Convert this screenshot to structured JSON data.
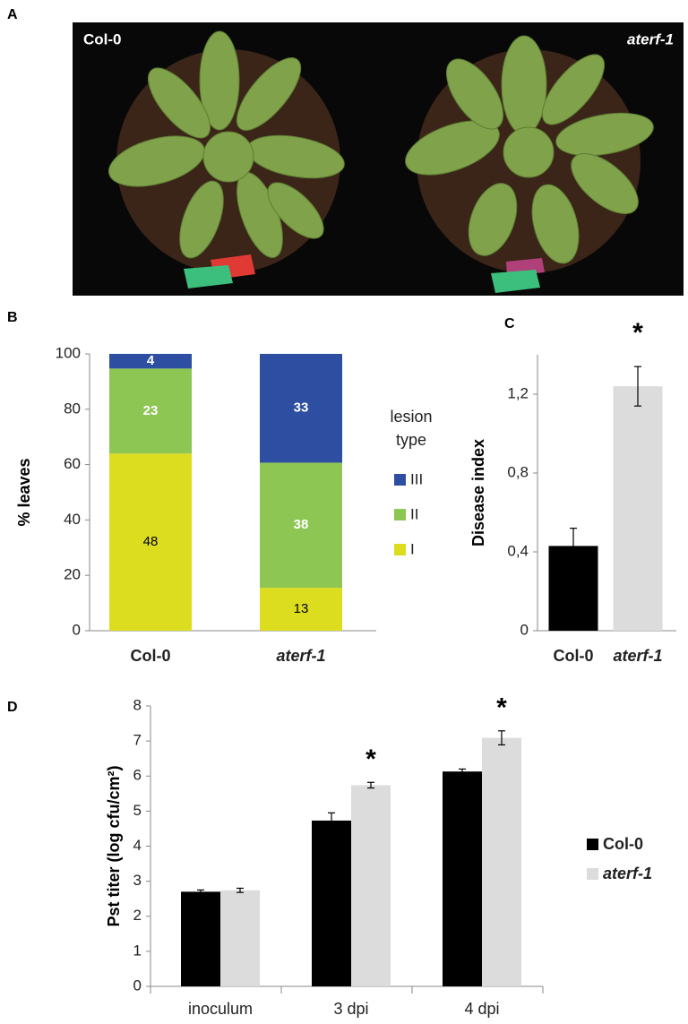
{
  "photo": {
    "panel": "A",
    "left_label": "Col-0",
    "right_label": "aterf-1"
  },
  "chart_data": [
    {
      "type": "bar",
      "stacked": true,
      "panel": "B",
      "ylabel": "% leaves",
      "categories": [
        "Col-0",
        "aterf-1"
      ],
      "ylim": [
        0,
        100
      ],
      "yticks": [
        0,
        20,
        40,
        60,
        80,
        100
      ],
      "legend": "right",
      "legend_title": "lesion type",
      "series": [
        {
          "name": "I",
          "color": "#dddd1f",
          "label_color": "#000000",
          "values": [
            64,
            15.5
          ],
          "counts": [
            48,
            13
          ]
        },
        {
          "name": "II",
          "color": "#8dc653",
          "label_color": "#ffffff",
          "values": [
            30.7,
            45.2
          ],
          "counts": [
            23,
            38
          ]
        },
        {
          "name": "III",
          "color": "#2e4ea1",
          "label_color": "#ffffff",
          "values": [
            5.3,
            39.3
          ],
          "counts": [
            4,
            33
          ]
        }
      ]
    },
    {
      "type": "bar",
      "panel": "C",
      "ylabel": "Disease index",
      "categories": [
        "Col-0",
        "aterf-1"
      ],
      "colors": [
        "#000000",
        "#dcdcdc"
      ],
      "values": [
        0.43,
        1.24
      ],
      "errors": [
        0.09,
        0.1
      ],
      "ylim": [
        0,
        1.4
      ],
      "yticks": [
        0,
        {
          "value": 0.4,
          "label": "0,4"
        },
        {
          "value": 0.8,
          "label": "0,8"
        },
        {
          "value": 1.2,
          "label": "1,2"
        }
      ],
      "annotations": [
        {
          "x": "aterf-1",
          "text": "*"
        }
      ]
    },
    {
      "type": "bar",
      "panel": "D",
      "ylabel": "Pst titer (log cfu/cm²)",
      "categories": [
        "inoculum",
        "3 dpi",
        "4 dpi"
      ],
      "ylim": [
        0,
        8
      ],
      "yticks": [
        0,
        1,
        2,
        3,
        4,
        5,
        6,
        7,
        8
      ],
      "legend": "right",
      "series": [
        {
          "name": "Col-0",
          "color": "#000000",
          "values": [
            2.7,
            4.73,
            6.13
          ],
          "errors": [
            0.05,
            0.22,
            0.07
          ]
        },
        {
          "name": "aterf-1",
          "color": "#dcdcdc",
          "values": [
            2.74,
            5.74,
            7.09
          ],
          "errors": [
            0.06,
            0.08,
            0.2
          ]
        }
      ],
      "annotations": [
        {
          "x": "3 dpi",
          "series": "aterf-1",
          "text": "*"
        },
        {
          "x": "4 dpi",
          "series": "aterf-1",
          "text": "*"
        }
      ]
    }
  ]
}
